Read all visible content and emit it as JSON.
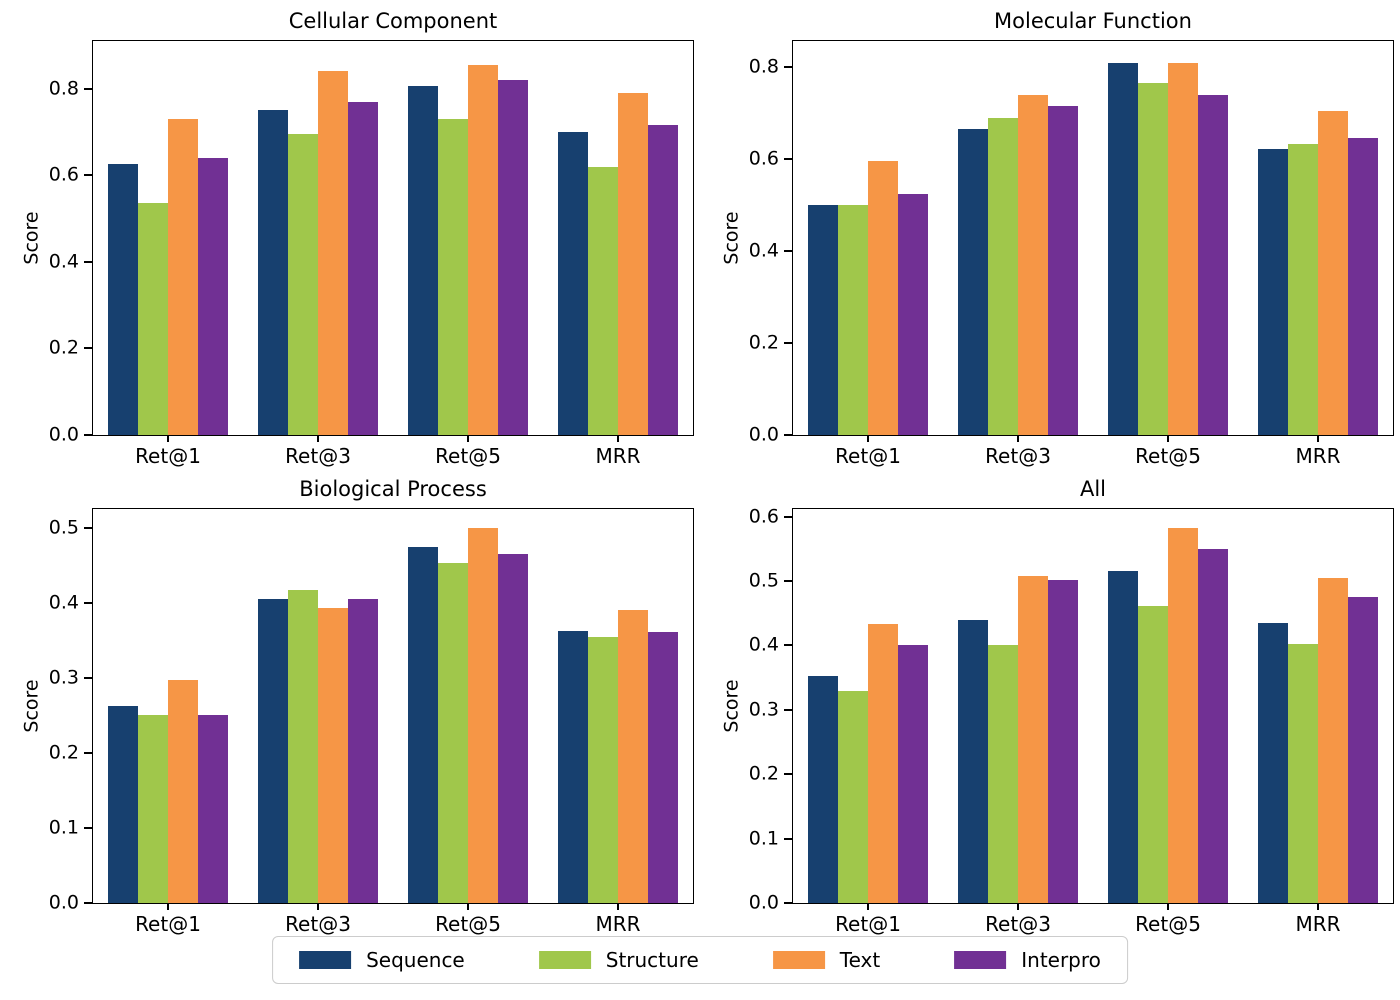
{
  "figure": {
    "background": "#ffffff",
    "axis_color": "#000000",
    "ylabel_text": "Score"
  },
  "legend": {
    "entries": [
      {
        "label": "Sequence",
        "color": "#17406F"
      },
      {
        "label": "Structure",
        "color": "#A0C74B"
      },
      {
        "label": "Text",
        "color": "#F69646"
      },
      {
        "label": "Interpro",
        "color": "#713094"
      }
    ]
  },
  "chart_data": [
    {
      "type": "bar",
      "title": "Cellular Component",
      "ylabel": "Score",
      "categories": [
        "Ret@1",
        "Ret@3",
        "Ret@5",
        "MRR"
      ],
      "yticks": [
        0.0,
        0.2,
        0.4,
        0.6,
        0.8
      ],
      "ytick_labels": [
        "0.0",
        "0.2",
        "0.4",
        "0.6",
        "0.8"
      ],
      "ylim": [
        0,
        0.91
      ],
      "grid": false,
      "series": [
        {
          "name": "Sequence",
          "values": [
            0.625,
            0.75,
            0.805,
            0.7
          ]
        },
        {
          "name": "Structure",
          "values": [
            0.535,
            0.695,
            0.73,
            0.62
          ]
        },
        {
          "name": "Text",
          "values": [
            0.73,
            0.84,
            0.855,
            0.79
          ]
        },
        {
          "name": "Interpro",
          "values": [
            0.64,
            0.77,
            0.82,
            0.715
          ]
        }
      ]
    },
    {
      "type": "bar",
      "title": "Molecular Function",
      "ylabel": "Score",
      "categories": [
        "Ret@1",
        "Ret@3",
        "Ret@5",
        "MRR"
      ],
      "yticks": [
        0.0,
        0.2,
        0.4,
        0.6,
        0.8
      ],
      "ytick_labels": [
        "0.0",
        "0.2",
        "0.4",
        "0.6",
        "0.8"
      ],
      "ylim": [
        0,
        0.857
      ],
      "grid": false,
      "series": [
        {
          "name": "Sequence",
          "values": [
            0.5,
            0.665,
            0.81,
            0.622
          ]
        },
        {
          "name": "Structure",
          "values": [
            0.5,
            0.69,
            0.765,
            0.632
          ]
        },
        {
          "name": "Text",
          "values": [
            0.595,
            0.74,
            0.81,
            0.705
          ]
        },
        {
          "name": "Interpro",
          "values": [
            0.525,
            0.715,
            0.74,
            0.645
          ]
        }
      ]
    },
    {
      "type": "bar",
      "title": "Biological Process",
      "ylabel": "Score",
      "categories": [
        "Ret@1",
        "Ret@3",
        "Ret@5",
        "MRR"
      ],
      "yticks": [
        0.0,
        0.1,
        0.2,
        0.3,
        0.4,
        0.5
      ],
      "ytick_labels": [
        "0.0",
        "0.1",
        "0.2",
        "0.3",
        "0.4",
        "0.5"
      ],
      "ylim": [
        0,
        0.525
      ],
      "grid": false,
      "series": [
        {
          "name": "Sequence",
          "values": [
            0.262,
            0.405,
            0.475,
            0.363
          ]
        },
        {
          "name": "Structure",
          "values": [
            0.25,
            0.417,
            0.453,
            0.354
          ]
        },
        {
          "name": "Text",
          "values": [
            0.297,
            0.393,
            0.5,
            0.39
          ]
        },
        {
          "name": "Interpro",
          "values": [
            0.25,
            0.405,
            0.465,
            0.361
          ]
        }
      ]
    },
    {
      "type": "bar",
      "title": "All",
      "ylabel": "Score",
      "categories": [
        "Ret@1",
        "Ret@3",
        "Ret@5",
        "MRR"
      ],
      "yticks": [
        0.0,
        0.1,
        0.2,
        0.3,
        0.4,
        0.5,
        0.6
      ],
      "ytick_labels": [
        "0.0",
        "0.1",
        "0.2",
        "0.3",
        "0.4",
        "0.5",
        "0.6"
      ],
      "ylim": [
        0,
        0.612
      ],
      "grid": false,
      "series": [
        {
          "name": "Sequence",
          "values": [
            0.352,
            0.44,
            0.515,
            0.435
          ]
        },
        {
          "name": "Structure",
          "values": [
            0.33,
            0.4,
            0.462,
            0.403
          ]
        },
        {
          "name": "Text",
          "values": [
            0.433,
            0.508,
            0.583,
            0.505
          ]
        },
        {
          "name": "Interpro",
          "values": [
            0.4,
            0.502,
            0.55,
            0.475
          ]
        }
      ]
    }
  ]
}
